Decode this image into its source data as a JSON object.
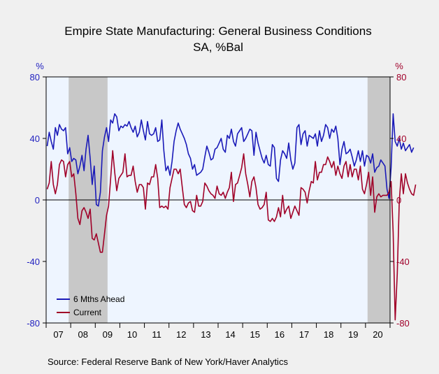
{
  "chart_data": {
    "type": "line",
    "title": "Empire State Manufacturing: General Business Conditions",
    "subtitle": "SA, %Bal",
    "left_unit": "%",
    "right_unit": "%",
    "ylim": [
      -80,
      80
    ],
    "yticks": [
      -80,
      -40,
      0,
      40,
      80
    ],
    "x_start": "2007-01",
    "x_end": "2020-12",
    "x_ticks": [
      "07",
      "08",
      "09",
      "10",
      "11",
      "12",
      "13",
      "14",
      "15",
      "16",
      "17",
      "18",
      "19",
      "20"
    ],
    "recessions": [
      [
        "2007-12",
        "2009-06"
      ],
      [
        "2020-02",
        "2020-12"
      ]
    ],
    "legend_position": "bottom-left",
    "source": "Source:  Federal Reserve Bank of New York/Haver Analytics",
    "colors": {
      "left_axis": "#1f1fbf",
      "right_axis": "#a0002a",
      "plot_bg": "#eef5ff",
      "recession": "#c8c8c8",
      "frame": "#000000"
    },
    "series": [
      {
        "name": "6 Mths Ahead",
        "color": "#1a1ab8",
        "values": [
          35,
          44,
          38,
          33,
          47,
          42,
          49,
          46,
          45,
          47,
          30,
          34,
          25,
          27,
          26,
          17,
          22,
          29,
          19,
          33,
          42,
          27,
          10,
          22,
          -3,
          -4,
          5,
          32,
          41,
          47,
          38,
          52,
          50,
          56,
          54,
          45,
          48,
          47,
          49,
          48,
          51,
          47,
          44,
          48,
          41,
          44,
          52,
          45,
          39,
          51,
          43,
          42,
          43,
          47,
          38,
          39,
          52,
          32,
          19,
          22,
          16,
          25,
          38,
          45,
          50,
          46,
          43,
          40,
          36,
          30,
          27,
          20,
          23,
          16,
          17,
          18,
          20,
          28,
          35,
          31,
          26,
          27,
          33,
          34,
          37,
          40,
          33,
          31,
          42,
          40,
          46,
          38,
          35,
          43,
          45,
          47,
          38,
          40,
          43,
          46,
          45,
          29,
          44,
          37,
          32,
          27,
          24,
          29,
          23,
          22,
          36,
          34,
          14,
          12,
          26,
          32,
          30,
          27,
          37,
          26,
          20,
          24,
          47,
          49,
          36,
          43,
          45,
          35,
          42,
          41,
          40,
          43,
          35,
          45,
          38,
          42,
          49,
          47,
          40,
          46,
          44,
          48,
          40,
          23,
          33,
          38,
          30,
          31,
          33,
          28,
          22,
          26,
          32,
          25,
          32,
          22,
          29,
          28,
          24,
          30,
          18,
          21,
          22,
          26,
          24,
          22,
          7,
          1,
          21,
          56,
          38,
          35,
          40,
          33,
          37,
          32,
          34,
          36,
          31,
          34
        ]
      },
      {
        "name": "Current",
        "color": "#a00028",
        "values": [
          7,
          11,
          25,
          10,
          4,
          10,
          23,
          26,
          25,
          15,
          23,
          25,
          15,
          17,
          4,
          -12,
          -16,
          -7,
          -5,
          -8,
          -12,
          -6,
          -25,
          -26,
          -22,
          -28,
          -34,
          -34,
          -22,
          -10,
          -4,
          14,
          32,
          18,
          6,
          14,
          16,
          18,
          30,
          15,
          16,
          16,
          22,
          12,
          5,
          10,
          10,
          8,
          -6,
          11,
          10,
          15,
          15,
          23,
          14,
          -5,
          -4,
          -5,
          -4,
          -6,
          8,
          14,
          20,
          20,
          17,
          20,
          8,
          -3,
          -5,
          -2,
          -1,
          -7,
          -8,
          3,
          -4,
          -4,
          -1,
          11,
          9,
          6,
          4,
          3,
          1,
          9,
          4,
          3,
          5,
          1,
          5,
          8,
          18,
          -1,
          10,
          11,
          16,
          21,
          30,
          17,
          10,
          2,
          12,
          15,
          8,
          -3,
          -6,
          -5,
          -3,
          5,
          -13,
          -14,
          -12,
          -14,
          -11,
          -5,
          -11,
          3,
          -9,
          -6,
          -4,
          -12,
          -8,
          -4,
          -7,
          -10,
          8,
          7,
          5,
          -2,
          6,
          12,
          11,
          25,
          13,
          18,
          18,
          23,
          23,
          28,
          25,
          21,
          25,
          16,
          22,
          17,
          14,
          22,
          25,
          15,
          23,
          15,
          20,
          20,
          13,
          22,
          7,
          4,
          10,
          18,
          3,
          15,
          -8,
          2,
          4,
          2,
          3,
          3,
          3,
          5,
          12,
          -21,
          -78,
          -48,
          -0.4,
          17,
          4,
          17,
          11,
          7,
          4,
          3,
          10
        ]
      }
    ]
  }
}
